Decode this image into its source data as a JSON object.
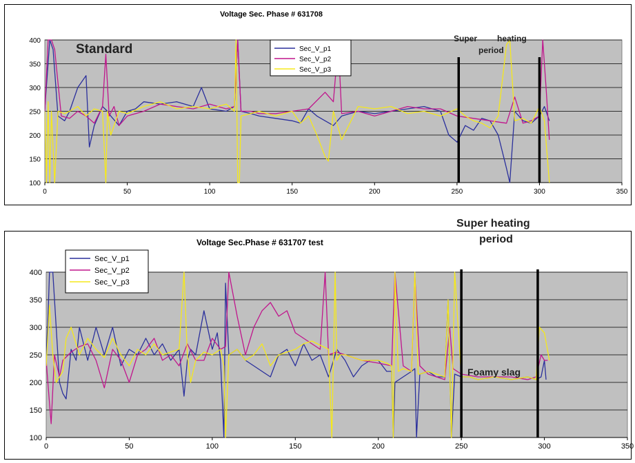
{
  "chart_data": [
    {
      "type": "line",
      "title": "Voltage Sec. Phase  # 631708",
      "xlim": [
        0,
        350
      ],
      "ylim": [
        100,
        400
      ],
      "xticks": [
        0,
        50,
        100,
        150,
        200,
        250,
        300,
        350
      ],
      "yticks": [
        100,
        150,
        200,
        250,
        300,
        350,
        400
      ],
      "grid": true,
      "legend_placement": "top-center",
      "annotations": {
        "standard": "Standard",
        "super": "Super",
        "heating": "heating",
        "period": "period"
      },
      "markers": [
        251,
        300
      ],
      "colors": {
        "p1": "#2a2f9c",
        "p2": "#c0158c",
        "p3": "#f5e81b",
        "plot_bg": "#c0c0c0"
      },
      "series": [
        {
          "name": "Sec_V_p1",
          "color": "#2a2f9c",
          "x": [
            0,
            3,
            5,
            8,
            12,
            15,
            20,
            25,
            27,
            30,
            35,
            38,
            40,
            45,
            50,
            55,
            60,
            70,
            80,
            90,
            95,
            100,
            110,
            115,
            117,
            119,
            125,
            130,
            140,
            150,
            155,
            160,
            165,
            170,
            175,
            180,
            190,
            200,
            210,
            220,
            230,
            240,
            245,
            250,
            255,
            260,
            265,
            270,
            275,
            280,
            282,
            285,
            290,
            295,
            300,
            303,
            306
          ],
          "y": [
            255,
            400,
            380,
            240,
            230,
            250,
            300,
            325,
            175,
            220,
            260,
            250,
            240,
            220,
            250,
            255,
            270,
            265,
            270,
            260,
            300,
            255,
            250,
            260,
            400,
            250,
            245,
            240,
            235,
            230,
            225,
            255,
            240,
            230,
            220,
            240,
            250,
            245,
            250,
            255,
            260,
            250,
            200,
            185,
            220,
            210,
            235,
            230,
            200,
            130,
            100,
            250,
            230,
            225,
            240,
            260,
            230
          ]
        },
        {
          "name": "Sec_V_p2",
          "color": "#c0158c",
          "x": [
            0,
            2,
            4,
            6,
            10,
            15,
            20,
            25,
            30,
            35,
            37,
            39,
            42,
            45,
            50,
            60,
            70,
            80,
            90,
            100,
            110,
            115,
            117,
            119,
            125,
            130,
            140,
            150,
            160,
            170,
            175,
            178,
            180,
            190,
            200,
            210,
            220,
            230,
            240,
            250,
            260,
            270,
            280,
            285,
            290,
            295,
            300,
            302,
            304,
            306
          ],
          "y": [
            250,
            400,
            400,
            380,
            240,
            235,
            250,
            240,
            225,
            260,
            370,
            240,
            260,
            220,
            240,
            250,
            265,
            260,
            255,
            265,
            255,
            260,
            400,
            250,
            250,
            245,
            245,
            250,
            255,
            290,
            270,
            395,
            245,
            250,
            240,
            250,
            260,
            255,
            255,
            240,
            235,
            230,
            225,
            280,
            225,
            230,
            240,
            400,
            300,
            190
          ]
        },
        {
          "name": "Sec_V_p3",
          "color": "#f5e81b",
          "x": [
            0,
            1,
            2,
            3,
            4,
            6,
            8,
            12,
            15,
            20,
            25,
            30,
            35,
            37,
            38,
            40,
            45,
            50,
            60,
            70,
            80,
            90,
            100,
            110,
            115,
            116,
            117,
            118,
            119,
            125,
            130,
            140,
            150,
            155,
            160,
            165,
            170,
            172,
            175,
            180,
            190,
            200,
            210,
            220,
            230,
            240,
            250,
            255,
            260,
            265,
            270,
            275,
            280,
            282,
            285,
            290,
            295,
            300,
            303,
            306
          ],
          "y": [
            250,
            100,
            270,
            100,
            250,
            100,
            250,
            245,
            250,
            260,
            240,
            255,
            250,
            100,
            250,
            200,
            250,
            245,
            260,
            270,
            255,
            260,
            255,
            265,
            250,
            400,
            100,
            100,
            240,
            245,
            250,
            240,
            250,
            225,
            240,
            200,
            155,
            145,
            250,
            190,
            260,
            255,
            260,
            245,
            250,
            240,
            255,
            240,
            230,
            225,
            215,
            240,
            390,
            400,
            230,
            235,
            225,
            260,
            230,
            100
          ]
        }
      ]
    },
    {
      "type": "line",
      "title": "Voltage Sec.Phase # 631707 test",
      "xlim": [
        0,
        350
      ],
      "ylim": [
        100,
        400
      ],
      "xticks": [
        0,
        50,
        100,
        150,
        200,
        250,
        300,
        350
      ],
      "yticks": [
        100,
        150,
        200,
        250,
        300,
        350,
        400
      ],
      "grid": true,
      "legend_placement": "top-left",
      "annotations": {
        "super_heating": "Super heating",
        "period": "period",
        "foamy": "Foamy slag"
      },
      "markers": [
        250,
        296
      ],
      "colors": {
        "p1": "#2a2f9c",
        "p2": "#c0158c",
        "p3": "#f5e81b",
        "plot_bg": "#c0c0c0"
      },
      "series": [
        {
          "name": "Sec_V_p1",
          "color": "#2a2f9c",
          "x": [
            0,
            1,
            2,
            4,
            6,
            8,
            10,
            12,
            15,
            18,
            20,
            25,
            30,
            35,
            40,
            45,
            50,
            55,
            60,
            65,
            70,
            75,
            80,
            83,
            85,
            87,
            90,
            95,
            100,
            103,
            105,
            107,
            108,
            110,
            115,
            120,
            125,
            130,
            135,
            140,
            145,
            150,
            155,
            160,
            165,
            170,
            175,
            180,
            185,
            190,
            195,
            200,
            205,
            208,
            209,
            210,
            215,
            220,
            222,
            223,
            225,
            230,
            235,
            240,
            242,
            244,
            246,
            250,
            255,
            260,
            270,
            280,
            290,
            295,
            298,
            300,
            301
          ],
          "y": [
            250,
            310,
            400,
            400,
            300,
            200,
            180,
            170,
            260,
            240,
            300,
            240,
            300,
            250,
            300,
            230,
            260,
            250,
            280,
            250,
            270,
            240,
            260,
            175,
            240,
            260,
            250,
            330,
            260,
            290,
            240,
            100,
            380,
            250,
            260,
            240,
            230,
            220,
            210,
            250,
            260,
            230,
            270,
            240,
            250,
            210,
            260,
            240,
            210,
            230,
            240,
            240,
            220,
            220,
            100,
            200,
            210,
            220,
            225,
            100,
            215,
            220,
            210,
            210,
            350,
            100,
            215,
            210,
            210,
            205,
            210,
            205,
            210,
            205,
            210,
            240,
            205
          ]
        },
        {
          "name": "Sec_V_p2",
          "color": "#c0158c",
          "x": [
            0,
            1,
            3,
            5,
            8,
            10,
            15,
            20,
            25,
            30,
            35,
            40,
            45,
            50,
            55,
            60,
            65,
            70,
            75,
            80,
            85,
            90,
            95,
            100,
            105,
            108,
            110,
            115,
            120,
            125,
            130,
            135,
            140,
            145,
            150,
            160,
            165,
            168,
            170,
            175,
            180,
            190,
            200,
            208,
            210,
            215,
            220,
            222,
            225,
            230,
            240,
            243,
            245,
            250,
            260,
            270,
            280,
            290,
            295,
            298,
            300,
            302
          ],
          "y": [
            240,
            200,
            125,
            250,
            210,
            240,
            255,
            265,
            270,
            240,
            190,
            260,
            240,
            200,
            250,
            260,
            280,
            240,
            250,
            230,
            270,
            240,
            240,
            280,
            260,
            265,
            400,
            320,
            250,
            300,
            330,
            345,
            320,
            330,
            290,
            270,
            260,
            400,
            250,
            255,
            250,
            240,
            235,
            230,
            400,
            230,
            220,
            395,
            230,
            215,
            205,
            300,
            225,
            215,
            210,
            210,
            210,
            205,
            210,
            250,
            240,
            240
          ]
        },
        {
          "name": "Sec_V_p3",
          "color": "#f5e81b",
          "x": [
            0,
            2,
            4,
            6,
            8,
            10,
            12,
            15,
            20,
            25,
            30,
            35,
            40,
            45,
            50,
            55,
            60,
            65,
            70,
            75,
            80,
            83,
            85,
            87,
            90,
            95,
            100,
            105,
            107,
            108,
            110,
            115,
            120,
            125,
            130,
            135,
            140,
            145,
            150,
            155,
            160,
            170,
            172,
            174,
            175,
            177,
            180,
            190,
            200,
            205,
            208,
            209,
            210,
            212,
            215,
            220,
            222,
            224,
            225,
            230,
            235,
            240,
            242,
            244,
            246,
            250,
            255,
            260,
            270,
            280,
            290,
            295,
            297,
            300,
            303
          ],
          "y": [
            230,
            340,
            250,
            200,
            210,
            220,
            280,
            300,
            250,
            280,
            260,
            245,
            280,
            250,
            230,
            260,
            250,
            270,
            250,
            255,
            260,
            400,
            250,
            200,
            240,
            255,
            250,
            260,
            230,
            100,
            250,
            260,
            240,
            250,
            270,
            230,
            250,
            255,
            260,
            270,
            275,
            260,
            100,
            400,
            240,
            250,
            250,
            240,
            240,
            235,
            230,
            100,
            400,
            220,
            225,
            220,
            400,
            215,
            215,
            220,
            215,
            210,
            350,
            100,
            400,
            210,
            210,
            205,
            210,
            205,
            210,
            205,
            300,
            290,
            240
          ]
        }
      ]
    }
  ]
}
